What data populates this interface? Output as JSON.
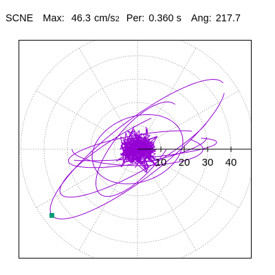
{
  "header": {
    "station": "SCNE",
    "max_label": "Max:",
    "max_value": "46.3",
    "max_unit": "cm/s",
    "max_unit_power": "2",
    "period_label": "Per:",
    "period_value": "0.360 s",
    "angle_label": "Ang:",
    "angle_value": "217.7"
  },
  "chart_data": {
    "type": "polar-orbit",
    "title": "",
    "radial_ticks": [
      10,
      20,
      30,
      40
    ],
    "rlim": [
      0,
      50
    ],
    "grid": "dotted concentric circles with spokes every 30 degrees",
    "orbit_color": "#9400d3",
    "end_marker_color": "#009977",
    "max_radius": 46.3,
    "max_angle_deg": 217.7
  }
}
